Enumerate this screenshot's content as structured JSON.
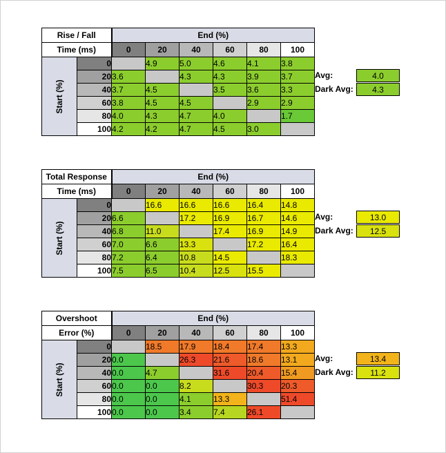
{
  "tables": [
    {
      "title_line1": "Rise / Fall",
      "title_line2": "Time (ms)",
      "end_label": "End (%)",
      "start_label": "Start (%)",
      "columns": [
        "0",
        "20",
        "40",
        "60",
        "80",
        "100"
      ],
      "rows": [
        {
          "label": "0",
          "cells": [
            {
              "v": "",
              "c": "#c8c8c8"
            },
            {
              "v": "4.9",
              "c": "#8ccd2e"
            },
            {
              "v": "5.0",
              "c": "#8ccd2e"
            },
            {
              "v": "4.6",
              "c": "#8ccd2e"
            },
            {
              "v": "4.1",
              "c": "#8ccd2e"
            },
            {
              "v": "3.8",
              "c": "#8ccd2e"
            }
          ]
        },
        {
          "label": "20",
          "cells": [
            {
              "v": "3.6",
              "c": "#8ccd2e"
            },
            {
              "v": "",
              "c": "#c8c8c8"
            },
            {
              "v": "4.3",
              "c": "#8ccd2e"
            },
            {
              "v": "4.3",
              "c": "#8ccd2e"
            },
            {
              "v": "3.9",
              "c": "#8ccd2e"
            },
            {
              "v": "3.7",
              "c": "#8ccd2e"
            }
          ]
        },
        {
          "label": "40",
          "cells": [
            {
              "v": "3.7",
              "c": "#8ccd2e"
            },
            {
              "v": "4.5",
              "c": "#8ccd2e"
            },
            {
              "v": "",
              "c": "#c8c8c8"
            },
            {
              "v": "3.5",
              "c": "#8ccd2e"
            },
            {
              "v": "3.6",
              "c": "#8ccd2e"
            },
            {
              "v": "3.3",
              "c": "#8ccd2e"
            }
          ]
        },
        {
          "label": "60",
          "cells": [
            {
              "v": "3.8",
              "c": "#8ccd2e"
            },
            {
              "v": "4.5",
              "c": "#8ccd2e"
            },
            {
              "v": "4.5",
              "c": "#8ccd2e"
            },
            {
              "v": "",
              "c": "#c8c8c8"
            },
            {
              "v": "2.9",
              "c": "#8ccd2e"
            },
            {
              "v": "2.9",
              "c": "#8ccd2e"
            }
          ]
        },
        {
          "label": "80",
          "cells": [
            {
              "v": "4.0",
              "c": "#8ccd2e"
            },
            {
              "v": "4.3",
              "c": "#8ccd2e"
            },
            {
              "v": "4.7",
              "c": "#8ccd2e"
            },
            {
              "v": "4.0",
              "c": "#8ccd2e"
            },
            {
              "v": "",
              "c": "#c8c8c8"
            },
            {
              "v": "1.7",
              "c": "#6ac936"
            }
          ]
        },
        {
          "label": "100",
          "cells": [
            {
              "v": "4.2",
              "c": "#8ccd2e"
            },
            {
              "v": "4.2",
              "c": "#8ccd2e"
            },
            {
              "v": "4.7",
              "c": "#8ccd2e"
            },
            {
              "v": "4.5",
              "c": "#8ccd2e"
            },
            {
              "v": "3.0",
              "c": "#8ccd2e"
            },
            {
              "v": "",
              "c": "#c8c8c8"
            }
          ]
        }
      ],
      "avg_label": "Avg:",
      "avg_value": "4.0",
      "avg_color": "#8ccd2e",
      "dark_avg_label": "Dark Avg:",
      "dark_avg_value": "4.3",
      "dark_avg_color": "#8ccd2e"
    },
    {
      "title_line1": "Total Response",
      "title_line2": "Time (ms)",
      "end_label": "End (%)",
      "start_label": "Start (%)",
      "columns": [
        "0",
        "20",
        "40",
        "60",
        "80",
        "100"
      ],
      "rows": [
        {
          "label": "0",
          "cells": [
            {
              "v": "",
              "c": "#c8c8c8"
            },
            {
              "v": "16.6",
              "c": "#eaea00"
            },
            {
              "v": "16.6",
              "c": "#eaea00"
            },
            {
              "v": "16.6",
              "c": "#eaea00"
            },
            {
              "v": "16.4",
              "c": "#eaea00"
            },
            {
              "v": "14.8",
              "c": "#eaea00"
            }
          ]
        },
        {
          "label": "20",
          "cells": [
            {
              "v": "6.6",
              "c": "#8ccd2e"
            },
            {
              "v": "",
              "c": "#c8c8c8"
            },
            {
              "v": "17.2",
              "c": "#eaea00"
            },
            {
              "v": "16.9",
              "c": "#eaea00"
            },
            {
              "v": "16.7",
              "c": "#eaea00"
            },
            {
              "v": "14.6",
              "c": "#eaea00"
            }
          ]
        },
        {
          "label": "40",
          "cells": [
            {
              "v": "6.8",
              "c": "#8ccd2e"
            },
            {
              "v": "11.0",
              "c": "#c8dc1e"
            },
            {
              "v": "",
              "c": "#c8c8c8"
            },
            {
              "v": "17.4",
              "c": "#eaea00"
            },
            {
              "v": "16.9",
              "c": "#eaea00"
            },
            {
              "v": "14.9",
              "c": "#eaea00"
            }
          ]
        },
        {
          "label": "60",
          "cells": [
            {
              "v": "7.0",
              "c": "#8ccd2e"
            },
            {
              "v": "6.6",
              "c": "#8ccd2e"
            },
            {
              "v": "13.3",
              "c": "#d9e20f"
            },
            {
              "v": "",
              "c": "#c8c8c8"
            },
            {
              "v": "17.2",
              "c": "#eaea00"
            },
            {
              "v": "16.4",
              "c": "#eaea00"
            }
          ]
        },
        {
          "label": "80",
          "cells": [
            {
              "v": "7.2",
              "c": "#8ccd2e"
            },
            {
              "v": "6.4",
              "c": "#8ccd2e"
            },
            {
              "v": "10.8",
              "c": "#c8dc1e"
            },
            {
              "v": "14.5",
              "c": "#eaea00"
            },
            {
              "v": "",
              "c": "#c8c8c8"
            },
            {
              "v": "18.3",
              "c": "#eaea00"
            }
          ]
        },
        {
          "label": "100",
          "cells": [
            {
              "v": "7.5",
              "c": "#8ccd2e"
            },
            {
              "v": "6.5",
              "c": "#8ccd2e"
            },
            {
              "v": "10.4",
              "c": "#c8dc1e"
            },
            {
              "v": "12.5",
              "c": "#d9e20f"
            },
            {
              "v": "15.5",
              "c": "#eaea00"
            },
            {
              "v": "",
              "c": "#c8c8c8"
            }
          ]
        }
      ],
      "avg_label": "Avg:",
      "avg_value": "13.0",
      "avg_color": "#eaea00",
      "dark_avg_label": "Dark Avg:",
      "dark_avg_value": "12.5",
      "dark_avg_color": "#d9e20f"
    },
    {
      "title_line1": "Overshoot",
      "title_line2": "Error (%)",
      "end_label": "End (%)",
      "start_label": "Start (%)",
      "columns": [
        "0",
        "20",
        "40",
        "60",
        "80",
        "100"
      ],
      "rows": [
        {
          "label": "0",
          "cells": [
            {
              "v": "",
              "c": "#c8c8c8"
            },
            {
              "v": "18.5",
              "c": "#f07a2a"
            },
            {
              "v": "17.9",
              "c": "#f07a2a"
            },
            {
              "v": "18.4",
              "c": "#f07a2a"
            },
            {
              "v": "17.4",
              "c": "#f07a2a"
            },
            {
              "v": "13.3",
              "c": "#f2a91e"
            }
          ]
        },
        {
          "label": "20",
          "cells": [
            {
              "v": "0.0",
              "c": "#4cc74c"
            },
            {
              "v": "",
              "c": "#c8c8c8"
            },
            {
              "v": "26.3",
              "c": "#ee4a2a"
            },
            {
              "v": "21.6",
              "c": "#ee5a2a"
            },
            {
              "v": "18.6",
              "c": "#f07a2a"
            },
            {
              "v": "13.1",
              "c": "#f2a91e"
            }
          ]
        },
        {
          "label": "40",
          "cells": [
            {
              "v": "0.0",
              "c": "#4cc74c"
            },
            {
              "v": "4.7",
              "c": "#8ccd2e"
            },
            {
              "v": "",
              "c": "#c8c8c8"
            },
            {
              "v": "31.6",
              "c": "#ee4a2a"
            },
            {
              "v": "20.4",
              "c": "#ee5a2a"
            },
            {
              "v": "15.4",
              "c": "#f09a22"
            }
          ]
        },
        {
          "label": "60",
          "cells": [
            {
              "v": "0.0",
              "c": "#4cc74c"
            },
            {
              "v": "0.0",
              "c": "#4cc74c"
            },
            {
              "v": "8.2",
              "c": "#c8dc1e"
            },
            {
              "v": "",
              "c": "#c8c8c8"
            },
            {
              "v": "30.3",
              "c": "#ee4a2a"
            },
            {
              "v": "20.3",
              "c": "#ee5a2a"
            }
          ]
        },
        {
          "label": "80",
          "cells": [
            {
              "v": "0.0",
              "c": "#4cc74c"
            },
            {
              "v": "0.0",
              "c": "#4cc74c"
            },
            {
              "v": "4.1",
              "c": "#8ccd2e"
            },
            {
              "v": "13.3",
              "c": "#f2b41a"
            },
            {
              "v": "",
              "c": "#c8c8c8"
            },
            {
              "v": "51.4",
              "c": "#ee4a2a"
            }
          ]
        },
        {
          "label": "100",
          "cells": [
            {
              "v": "0.0",
              "c": "#4cc74c"
            },
            {
              "v": "0.0",
              "c": "#4cc74c"
            },
            {
              "v": "3.4",
              "c": "#8ccd2e"
            },
            {
              "v": "7.4",
              "c": "#b6d622"
            },
            {
              "v": "26.1",
              "c": "#ee4a2a"
            },
            {
              "v": "",
              "c": "#c8c8c8"
            }
          ]
        }
      ],
      "avg_label": "Avg:",
      "avg_value": "13.4",
      "avg_color": "#f2b41a",
      "dark_avg_label": "Dark Avg:",
      "dark_avg_value": "11.2",
      "dark_avg_color": "#d9e20f"
    }
  ],
  "header_colors": [
    "#808080",
    "#a0a0a0",
    "#b8b8b8",
    "#d0d0d0",
    "#e6e6e6",
    "#ffffff"
  ]
}
